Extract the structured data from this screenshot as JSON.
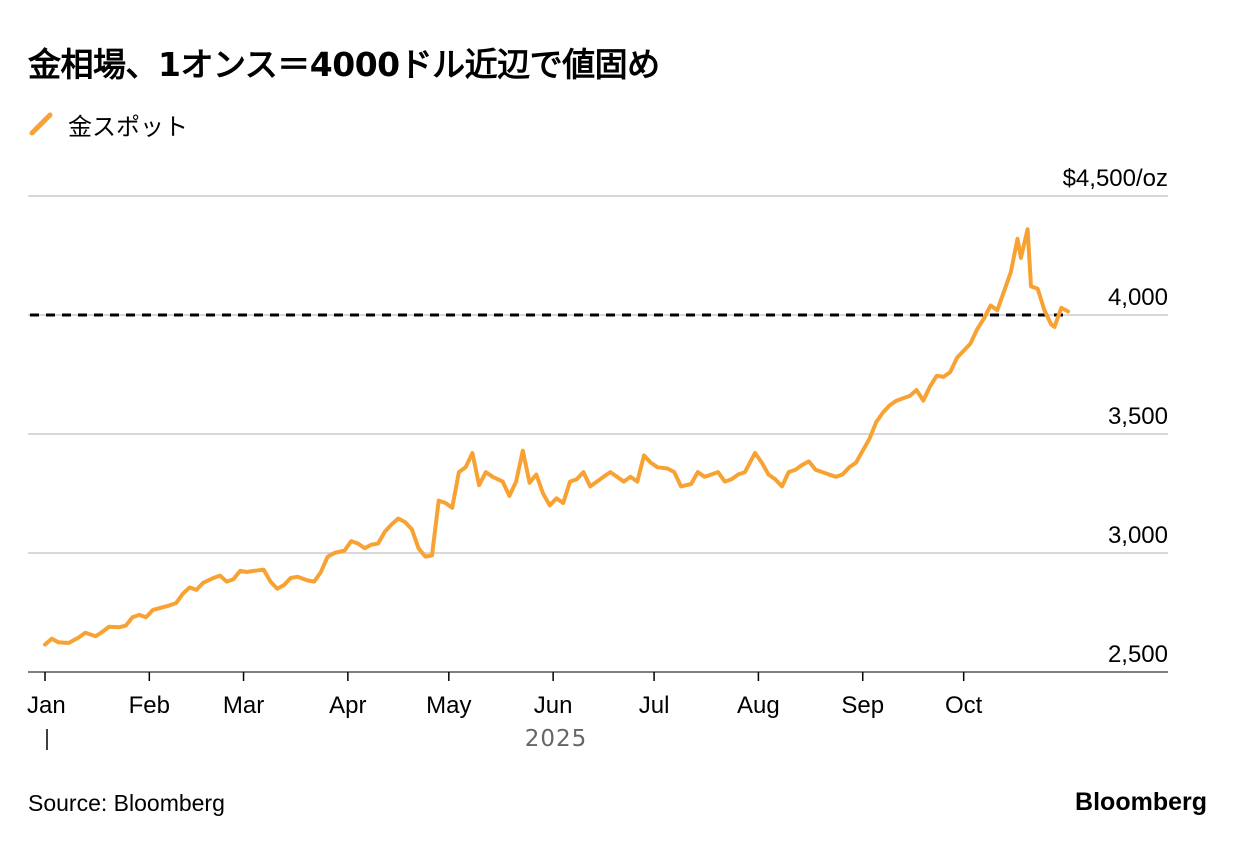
{
  "title": "金相場、1オンス＝4000ドル近辺で値固め",
  "source": "Source: Bloomberg",
  "brand": "Bloomberg",
  "colors": {
    "series": "#f7a233",
    "reference": "#000000",
    "grid": "#cccccc",
    "axis": "#555555"
  },
  "chart_data": {
    "type": "line",
    "title": "金相場、1オンス＝4000ドル近辺で値固め",
    "legend_position": "top-left",
    "grid": true,
    "ylim": [
      2500,
      4500
    ],
    "y_ticks": [
      {
        "value": 4500,
        "label": "$4,500/oz"
      },
      {
        "value": 4000,
        "label": "4,000"
      },
      {
        "value": 3500,
        "label": "3,500"
      },
      {
        "value": 3000,
        "label": "3,000"
      },
      {
        "value": 2500,
        "label": "2,500"
      }
    ],
    "x_range": [
      "2025-01-01",
      "2025-11-01"
    ],
    "x_ticks": [
      {
        "date": "2025-01-01",
        "label": "Jan"
      },
      {
        "date": "2025-02-01",
        "label": "Feb"
      },
      {
        "date": "2025-03-01",
        "label": "Mar"
      },
      {
        "date": "2025-04-01",
        "label": "Apr"
      },
      {
        "date": "2025-05-01",
        "label": "May"
      },
      {
        "date": "2025-06-01",
        "label": "Jun"
      },
      {
        "date": "2025-07-01",
        "label": "Jul"
      },
      {
        "date": "2025-08-01",
        "label": "Aug"
      },
      {
        "date": "2025-09-01",
        "label": "Sep"
      },
      {
        "date": "2025-10-01",
        "label": "Oct"
      }
    ],
    "year_label": "2025",
    "reference_line": {
      "value": 4000,
      "style": "dashed"
    },
    "series": [
      {
        "name": "金スポット",
        "color": "#f7a233",
        "points": [
          [
            "2025-01-01",
            2615
          ],
          [
            "2025-01-03",
            2640
          ],
          [
            "2025-01-05",
            2625
          ],
          [
            "2025-01-08",
            2622
          ],
          [
            "2025-01-11",
            2645
          ],
          [
            "2025-01-13",
            2665
          ],
          [
            "2025-01-16",
            2650
          ],
          [
            "2025-01-18",
            2668
          ],
          [
            "2025-01-20",
            2690
          ],
          [
            "2025-01-23",
            2688
          ],
          [
            "2025-01-25",
            2695
          ],
          [
            "2025-01-27",
            2730
          ],
          [
            "2025-01-29",
            2740
          ],
          [
            "2025-01-31",
            2730
          ],
          [
            "2025-02-02",
            2760
          ],
          [
            "2025-02-04",
            2768
          ],
          [
            "2025-02-07",
            2780
          ],
          [
            "2025-02-09",
            2790
          ],
          [
            "2025-02-11",
            2830
          ],
          [
            "2025-02-13",
            2855
          ],
          [
            "2025-02-15",
            2845
          ],
          [
            "2025-02-17",
            2875
          ],
          [
            "2025-02-20",
            2895
          ],
          [
            "2025-02-22",
            2905
          ],
          [
            "2025-02-24",
            2880
          ],
          [
            "2025-02-26",
            2890
          ],
          [
            "2025-02-28",
            2925
          ],
          [
            "2025-03-02",
            2920
          ],
          [
            "2025-03-04",
            2925
          ],
          [
            "2025-03-07",
            2930
          ],
          [
            "2025-03-09",
            2880
          ],
          [
            "2025-03-11",
            2850
          ],
          [
            "2025-03-13",
            2865
          ],
          [
            "2025-03-15",
            2895
          ],
          [
            "2025-03-17",
            2900
          ],
          [
            "2025-03-20",
            2885
          ],
          [
            "2025-03-22",
            2880
          ],
          [
            "2025-03-24",
            2920
          ],
          [
            "2025-03-26",
            2985
          ],
          [
            "2025-03-28",
            3000
          ],
          [
            "2025-03-31",
            3010
          ],
          [
            "2025-04-02",
            3050
          ],
          [
            "2025-04-04",
            3040
          ],
          [
            "2025-04-06",
            3020
          ],
          [
            "2025-04-08",
            3035
          ],
          [
            "2025-04-10",
            3040
          ],
          [
            "2025-04-12",
            3090
          ],
          [
            "2025-04-14",
            3120
          ],
          [
            "2025-04-16",
            3145
          ],
          [
            "2025-04-18",
            3130
          ],
          [
            "2025-04-20",
            3100
          ],
          [
            "2025-04-22",
            3020
          ],
          [
            "2025-04-24",
            2985
          ],
          [
            "2025-04-26",
            2990
          ],
          [
            "2025-04-28",
            3220
          ],
          [
            "2025-04-30",
            3210
          ],
          [
            "2025-05-02",
            3190
          ],
          [
            "2025-05-04",
            3340
          ],
          [
            "2025-05-06",
            3360
          ],
          [
            "2025-05-08",
            3420
          ],
          [
            "2025-05-10",
            3285
          ],
          [
            "2025-05-12",
            3340
          ],
          [
            "2025-05-14",
            3320
          ],
          [
            "2025-05-17",
            3300
          ],
          [
            "2025-05-19",
            3240
          ],
          [
            "2025-05-21",
            3300
          ],
          [
            "2025-05-23",
            3430
          ],
          [
            "2025-05-25",
            3295
          ],
          [
            "2025-05-27",
            3330
          ],
          [
            "2025-05-29",
            3250
          ],
          [
            "2025-05-31",
            3200
          ],
          [
            "2025-06-02",
            3230
          ],
          [
            "2025-06-04",
            3210
          ],
          [
            "2025-06-06",
            3300
          ],
          [
            "2025-06-08",
            3310
          ],
          [
            "2025-06-10",
            3340
          ],
          [
            "2025-06-12",
            3280
          ],
          [
            "2025-06-14",
            3300
          ],
          [
            "2025-06-16",
            3320
          ],
          [
            "2025-06-18",
            3340
          ],
          [
            "2025-06-20",
            3320
          ],
          [
            "2025-06-22",
            3300
          ],
          [
            "2025-06-24",
            3320
          ],
          [
            "2025-06-26",
            3300
          ],
          [
            "2025-06-28",
            3410
          ],
          [
            "2025-06-30",
            3380
          ],
          [
            "2025-07-02",
            3360
          ],
          [
            "2025-07-05",
            3355
          ],
          [
            "2025-07-07",
            3340
          ],
          [
            "2025-07-09",
            3280
          ],
          [
            "2025-07-12",
            3290
          ],
          [
            "2025-07-14",
            3340
          ],
          [
            "2025-07-16",
            3320
          ],
          [
            "2025-07-18",
            3330
          ],
          [
            "2025-07-20",
            3340
          ],
          [
            "2025-07-22",
            3300
          ],
          [
            "2025-07-24",
            3310
          ],
          [
            "2025-07-26",
            3330
          ],
          [
            "2025-07-28",
            3340
          ],
          [
            "2025-07-31",
            3420
          ],
          [
            "2025-08-02",
            3380
          ],
          [
            "2025-08-04",
            3330
          ],
          [
            "2025-08-06",
            3310
          ],
          [
            "2025-08-08",
            3280
          ],
          [
            "2025-08-10",
            3340
          ],
          [
            "2025-08-12",
            3350
          ],
          [
            "2025-08-14",
            3370
          ],
          [
            "2025-08-16",
            3385
          ],
          [
            "2025-08-18",
            3350
          ],
          [
            "2025-08-20",
            3340
          ],
          [
            "2025-08-22",
            3330
          ],
          [
            "2025-08-24",
            3320
          ],
          [
            "2025-08-26",
            3330
          ],
          [
            "2025-08-28",
            3360
          ],
          [
            "2025-08-30",
            3380
          ],
          [
            "2025-09-01",
            3430
          ],
          [
            "2025-09-03",
            3480
          ],
          [
            "2025-09-05",
            3550
          ],
          [
            "2025-09-07",
            3590
          ],
          [
            "2025-09-09",
            3620
          ],
          [
            "2025-09-11",
            3640
          ],
          [
            "2025-09-13",
            3650
          ],
          [
            "2025-09-15",
            3660
          ],
          [
            "2025-09-17",
            3685
          ],
          [
            "2025-09-19",
            3640
          ],
          [
            "2025-09-21",
            3700
          ],
          [
            "2025-09-23",
            3745
          ],
          [
            "2025-09-25",
            3740
          ],
          [
            "2025-09-27",
            3760
          ],
          [
            "2025-09-29",
            3820
          ],
          [
            "2025-10-01",
            3850
          ],
          [
            "2025-10-03",
            3880
          ],
          [
            "2025-10-05",
            3940
          ],
          [
            "2025-10-07",
            3985
          ],
          [
            "2025-10-09",
            4040
          ],
          [
            "2025-10-11",
            4020
          ],
          [
            "2025-10-13",
            4100
          ],
          [
            "2025-10-15",
            4180
          ],
          [
            "2025-10-17",
            4320
          ],
          [
            "2025-10-18",
            4240
          ],
          [
            "2025-10-20",
            4360
          ],
          [
            "2025-10-21",
            4120
          ],
          [
            "2025-10-23",
            4110
          ],
          [
            "2025-10-25",
            4020
          ],
          [
            "2025-10-27",
            3960
          ],
          [
            "2025-10-28",
            3950
          ],
          [
            "2025-10-30",
            4030
          ],
          [
            "2025-11-01",
            4015
          ]
        ]
      }
    ]
  }
}
